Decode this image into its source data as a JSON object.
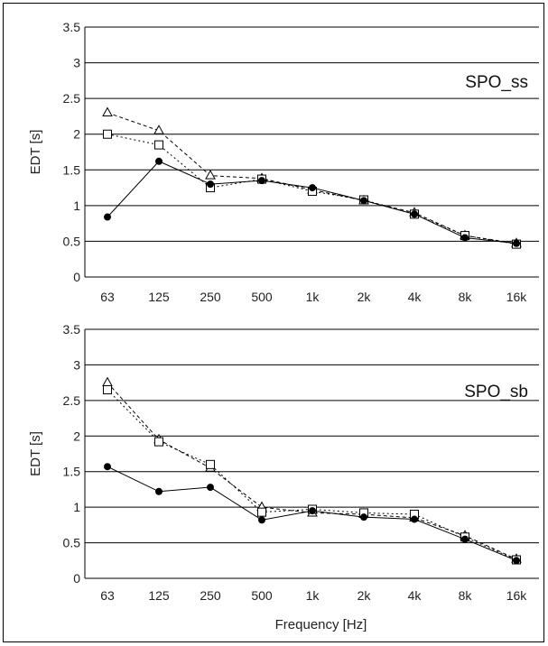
{
  "chart_data": [
    {
      "type": "line",
      "title": "",
      "panel_label": "SPO_ss",
      "xlabel": "",
      "ylabel": "EDT [s]",
      "categories": [
        "63",
        "125",
        "250",
        "500",
        "1k",
        "2k",
        "4k",
        "8k",
        "16k"
      ],
      "ylim": [
        0,
        3.5
      ],
      "yticks": [
        "0",
        "0.5",
        "1",
        "1.5",
        "2",
        "2.5",
        "3",
        "3.5"
      ],
      "grid": true,
      "series": [
        {
          "marker": "circle-filled",
          "line": "solid",
          "values": [
            0.84,
            1.62,
            1.3,
            1.35,
            1.25,
            1.07,
            0.88,
            0.55,
            0.47
          ]
        },
        {
          "marker": "square-open",
          "line": "dotted",
          "values": [
            2.0,
            1.85,
            1.25,
            1.37,
            1.2,
            1.08,
            0.88,
            0.58,
            0.46
          ]
        },
        {
          "marker": "triangle-open",
          "line": "dashed",
          "values": [
            2.3,
            2.05,
            1.42,
            1.38,
            1.22,
            1.07,
            0.9,
            0.58,
            0.47
          ]
        }
      ]
    },
    {
      "type": "line",
      "title": "",
      "panel_label": "SPO_sb",
      "xlabel": "Frequency [Hz]",
      "ylabel": "EDT [s]",
      "categories": [
        "63",
        "125",
        "250",
        "500",
        "1k",
        "2k",
        "4k",
        "8k",
        "16k"
      ],
      "ylim": [
        0,
        3.5
      ],
      "yticks": [
        "0",
        "0.5",
        "1",
        "1.5",
        "2",
        "2.5",
        "3",
        "3.5"
      ],
      "grid": true,
      "series": [
        {
          "marker": "circle-filled",
          "line": "solid",
          "values": [
            1.57,
            1.22,
            1.28,
            0.82,
            0.95,
            0.86,
            0.83,
            0.55,
            0.25
          ]
        },
        {
          "marker": "square-open",
          "line": "dotted",
          "values": [
            2.65,
            1.92,
            1.6,
            0.93,
            0.97,
            0.92,
            0.9,
            0.58,
            0.26
          ]
        },
        {
          "marker": "triangle-open",
          "line": "dashed",
          "values": [
            2.75,
            1.95,
            1.55,
            1.0,
            0.92,
            0.9,
            0.85,
            0.6,
            0.27
          ]
        }
      ]
    }
  ]
}
